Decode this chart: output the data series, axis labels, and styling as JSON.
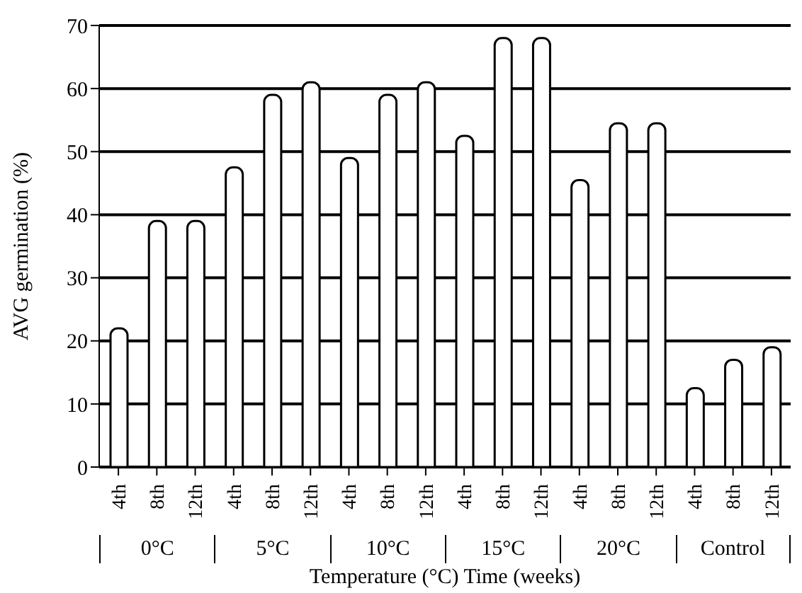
{
  "chart_data": {
    "type": "bar",
    "xlabel": "Temperature (°C) Time (weeks)",
    "ylabel": "AVG germination (%)",
    "categories": [
      "4th",
      "8th",
      "12th",
      "4th",
      "8th",
      "12th",
      "4th",
      "8th",
      "12th",
      "4th",
      "8th",
      "12th",
      "4th",
      "8th",
      "12th",
      "4th",
      "8th",
      "12th"
    ],
    "values": [
      22,
      39,
      39,
      47.5,
      59,
      61,
      49,
      59,
      61,
      52.5,
      68,
      68,
      45.5,
      54.5,
      54.5,
      12.5,
      17,
      19
    ],
    "color": "#ffffff",
    "annotations": [
      "0°C",
      "5°C",
      "10°C",
      "15°C",
      "20°C",
      "Control"
    ],
    "ylim": [
      0,
      70
    ],
    "yticks": [
      0,
      10,
      20,
      30,
      40,
      50,
      60,
      70
    ],
    "grid": "y"
  }
}
